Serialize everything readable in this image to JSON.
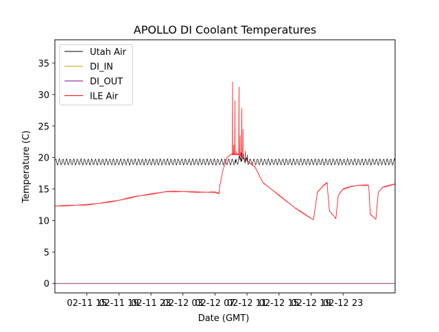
{
  "chart_data": {
    "type": "line",
    "title": "APOLLO DI Coolant Temperatures",
    "xlabel": "Date (GMT)",
    "ylabel": "Temperature (C)",
    "x_range_hours": [
      0,
      42.5
    ],
    "ylim": [
      -1.5,
      38.7
    ],
    "y_ticks": [
      0,
      5,
      10,
      15,
      20,
      25,
      30,
      35
    ],
    "x_ticks": [
      {
        "label": "02-11 15",
        "hour": 4
      },
      {
        "label": "02-11 19",
        "hour": 8
      },
      {
        "label": "02-11 23",
        "hour": 12
      },
      {
        "label": "02-12 03",
        "hour": 16
      },
      {
        "label": "02-12 07",
        "hour": 20
      },
      {
        "label": "02-12 11",
        "hour": 24
      },
      {
        "label": "02-12 15",
        "hour": 28
      },
      {
        "label": "02-12 19",
        "hour": 32
      },
      {
        "label": "02-12 23",
        "hour": 36
      }
    ],
    "legend_position": "top-left",
    "grid": false,
    "series": [
      {
        "name": "Utah Air",
        "color": "#000000",
        "style": "oscillating",
        "osc_period_hours": 0.45,
        "osc_amplitude": 0.45,
        "points": [
          [
            0,
            19.3
          ],
          [
            22.6,
            19.3
          ],
          [
            22.7,
            19.2
          ],
          [
            23,
            19.7
          ],
          [
            23.3,
            19.8
          ],
          [
            23.6,
            19.8
          ],
          [
            24,
            19.4
          ],
          [
            24.5,
            19.3
          ],
          [
            25,
            19.3
          ],
          [
            42.5,
            19.3
          ]
        ],
        "spikes": [
          [
            22.55,
            19.2
          ],
          [
            23.0,
            20.3
          ],
          [
            23.25,
            20.8
          ],
          [
            23.55,
            20.6
          ],
          [
            23.8,
            21.0
          ],
          [
            24.05,
            20.4
          ]
        ]
      },
      {
        "name": "DI_IN",
        "color": "#d4a017",
        "style": "flat",
        "points": [
          [
            0,
            0.0
          ],
          [
            42.5,
            0.0
          ]
        ]
      },
      {
        "name": "DI_OUT",
        "color": "#800080",
        "style": "flat",
        "points": [
          [
            0,
            0.0
          ],
          [
            42.5,
            0.0
          ]
        ]
      },
      {
        "name": "ILE Air",
        "color": "#ff0000",
        "style": "line",
        "points": [
          [
            0,
            12.3
          ],
          [
            2,
            12.4
          ],
          [
            4,
            12.5
          ],
          [
            6,
            12.8
          ],
          [
            8,
            13.2
          ],
          [
            10,
            13.8
          ],
          [
            12,
            14.2
          ],
          [
            14,
            14.6
          ],
          [
            16,
            14.6
          ],
          [
            18,
            14.5
          ],
          [
            20,
            14.5
          ],
          [
            20.5,
            14.3
          ],
          [
            20.6,
            15.5
          ],
          [
            21,
            18.0
          ],
          [
            21.5,
            20.0
          ],
          [
            22,
            20.5
          ],
          [
            23,
            20.5
          ],
          [
            24,
            19.5
          ],
          [
            25,
            18.5
          ],
          [
            26,
            16.0
          ],
          [
            28,
            14.0
          ],
          [
            30,
            12.0
          ],
          [
            32.3,
            10.1
          ],
          [
            32.8,
            14.5
          ],
          [
            33.5,
            15.5
          ],
          [
            34,
            16.0
          ],
          [
            34.3,
            11.5
          ],
          [
            34.8,
            10.8
          ],
          [
            35.1,
            10.3
          ],
          [
            35.4,
            14.0
          ],
          [
            36,
            15.0
          ],
          [
            37,
            15.4
          ],
          [
            38,
            15.6
          ],
          [
            39.2,
            15.6
          ],
          [
            39.4,
            11.0
          ],
          [
            40.1,
            10.2
          ],
          [
            40.4,
            14.5
          ],
          [
            41,
            15.3
          ],
          [
            42.5,
            15.8
          ]
        ],
        "spikes": [
          [
            22.2,
            32.0
          ],
          [
            22.35,
            22.0
          ],
          [
            22.5,
            29.0
          ],
          [
            22.65,
            21.0
          ],
          [
            23.0,
            31.2
          ],
          [
            23.15,
            23.5
          ],
          [
            23.35,
            27.8
          ],
          [
            23.5,
            24.5
          ]
        ]
      }
    ]
  }
}
